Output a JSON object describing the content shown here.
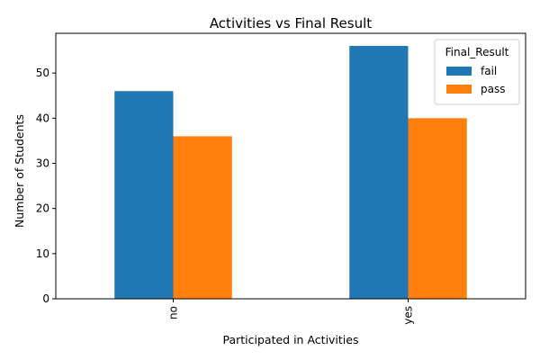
{
  "chart_data": {
    "type": "bar",
    "title": "Activities vs Final Result",
    "xlabel": "Participated in Activities",
    "ylabel": "Number of Students",
    "categories": [
      "no",
      "yes"
    ],
    "series": [
      {
        "name": "fail",
        "values": [
          46,
          56
        ],
        "color": "#1f77b4"
      },
      {
        "name": "pass",
        "values": [
          36,
          40
        ],
        "color": "#ff7f0e"
      }
    ],
    "ylim": [
      0,
      58.8
    ],
    "yticks": [
      0,
      10,
      20,
      30,
      40,
      50
    ],
    "legend": {
      "title": "Final_Result",
      "placement": "top-right"
    },
    "grid": false
  }
}
